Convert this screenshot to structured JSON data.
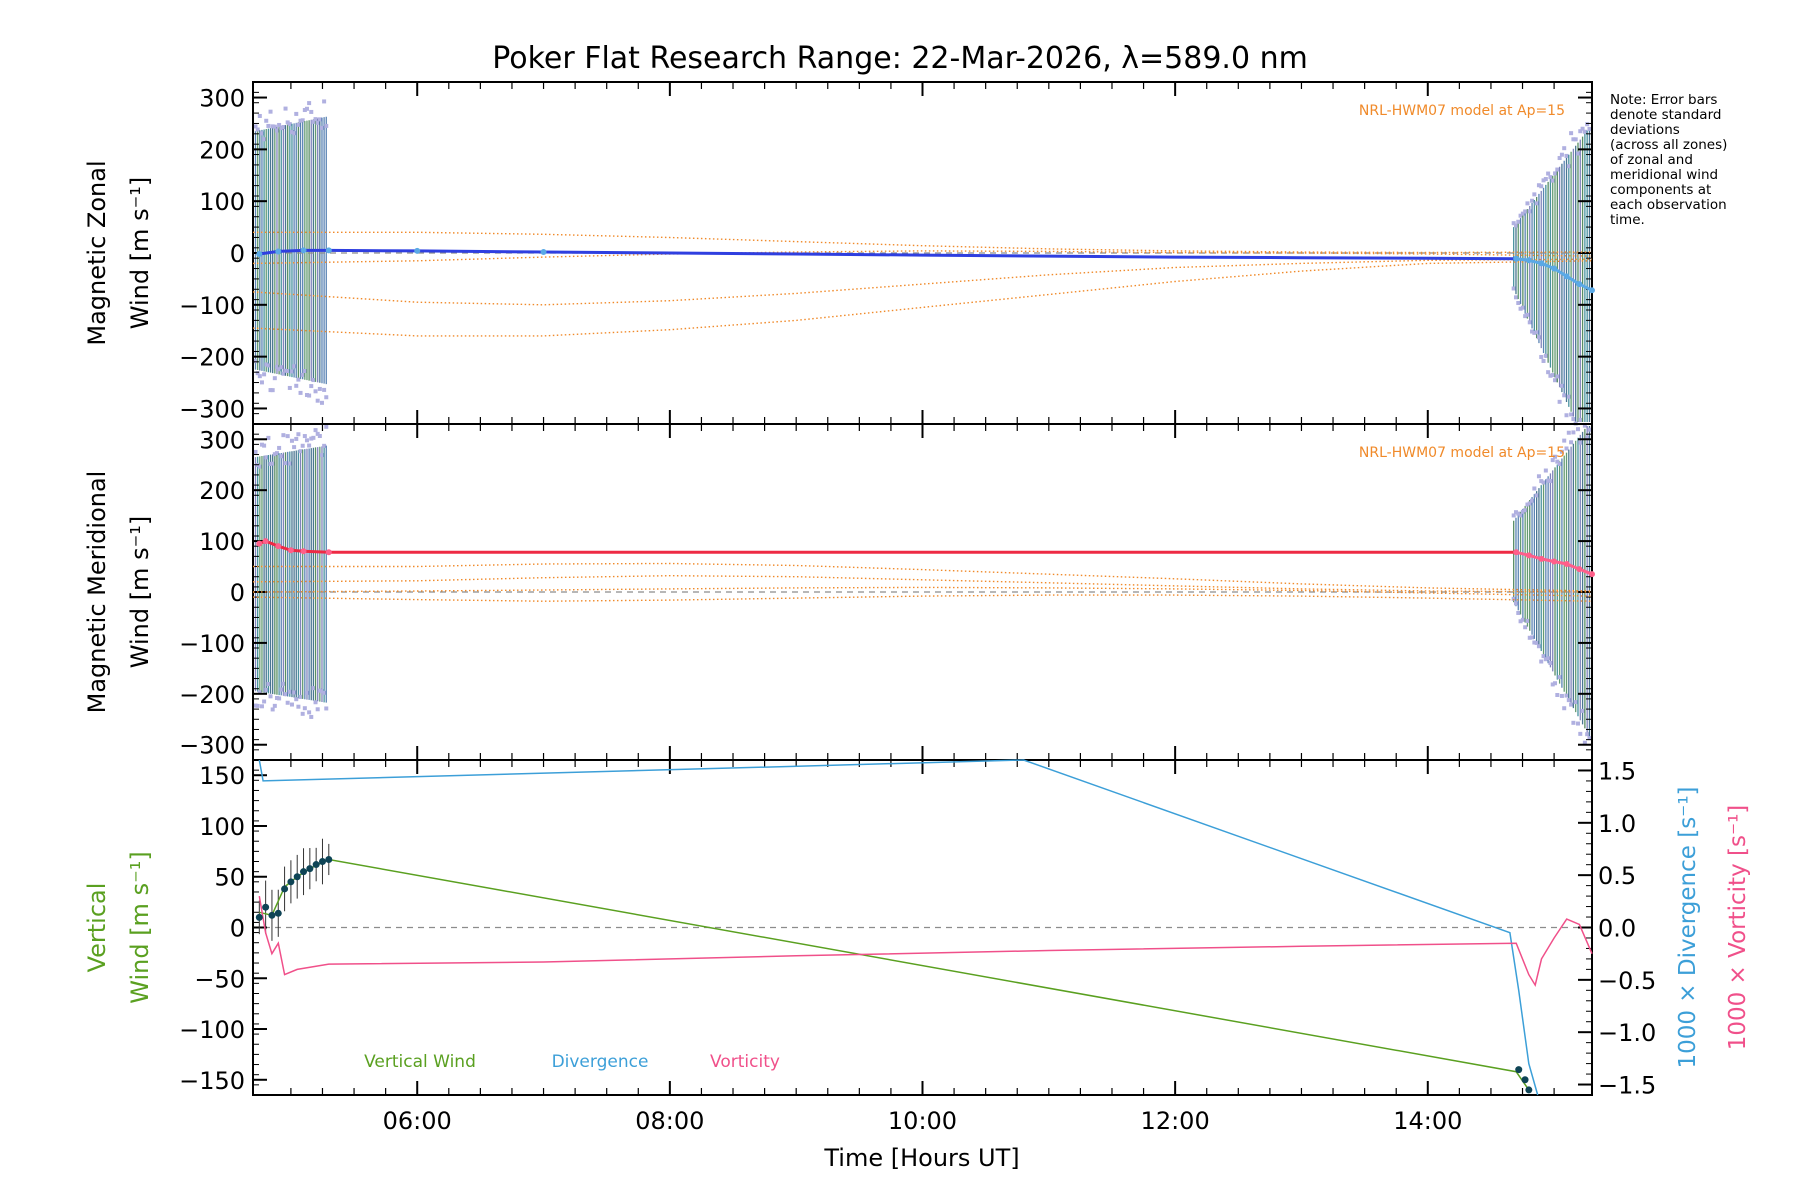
{
  "title": "Poker Flat Research Range: 22-Mar-2026, λ=589.0 nm",
  "note": [
    "Note: Error bars",
    "denote standard",
    "deviations",
    "(across all zones)",
    "of zonal and",
    "meridional wind",
    "components at",
    "each observation",
    "time."
  ],
  "colors": {
    "zonal": "#2f3fe0",
    "zonal_light": "#5aa9e6",
    "meridional": "#ee2a44",
    "meridional_light": "#ff5f8a",
    "model": "#f08a2a",
    "vertical": "#5aa020",
    "divergence": "#3c9fd8",
    "vorticity": "#f0508a",
    "error_bars": "#2b5f7f",
    "scatter": "#b0b0e0",
    "vertical_points": "#0e4456",
    "baseline": "#8c8c8c"
  },
  "chart_data": [
    {
      "type": "line",
      "panel": "zonal",
      "title": "Poker Flat Research Range: 22-Mar-2026, λ=589.0 nm",
      "ylabel": [
        "Magnetic Zonal",
        "Wind [m s⁻¹]"
      ],
      "xlim": [
        4.7,
        15.3
      ],
      "ylim": [
        -330,
        330
      ],
      "yticks": [
        300,
        200,
        100,
        0,
        -100,
        -200,
        -300
      ],
      "ytick_labels": [
        "300",
        "200",
        "100",
        "0",
        "−100",
        "−200",
        "−300"
      ],
      "model_label": "NRL-HWM07 model at Ap=15",
      "series": [
        {
          "name": "Zonal Wind",
          "x": [
            4.75,
            4.9,
            5.1,
            5.3,
            6.0,
            7.0,
            8.0,
            9.0,
            10.0,
            11.0,
            12.0,
            13.0,
            14.0,
            14.7
          ],
          "y": [
            -2,
            3,
            5,
            5,
            4,
            2,
            0,
            -2,
            -4,
            -6,
            -8,
            -9,
            -10,
            -11
          ]
        },
        {
          "name": "Zonal Wind (late)",
          "x": [
            14.7,
            14.8,
            14.9,
            15.0,
            15.1,
            15.2,
            15.3
          ],
          "y": [
            -11,
            -14,
            -20,
            -30,
            -45,
            -60,
            -72
          ]
        },
        {
          "name": "Model 1",
          "x": [
            4.7,
            6,
            7,
            8,
            9,
            10,
            11,
            12,
            13,
            14,
            15.3
          ],
          "y": [
            40,
            40,
            36,
            30,
            22,
            14,
            8,
            4,
            2,
            1,
            2
          ]
        },
        {
          "name": "Model 2",
          "x": [
            4.7,
            6,
            7,
            8,
            9,
            10,
            11,
            12,
            13,
            14,
            15.3
          ],
          "y": [
            -20,
            -15,
            -8,
            -2,
            2,
            4,
            3,
            1,
            0,
            -2,
            -6
          ]
        },
        {
          "name": "Model 3",
          "x": [
            4.7,
            6,
            7,
            8,
            9,
            10,
            11,
            12,
            13,
            14,
            15.3
          ],
          "y": [
            -75,
            -95,
            -100,
            -92,
            -78,
            -60,
            -42,
            -28,
            -20,
            -14,
            -12
          ]
        },
        {
          "name": "Model 4",
          "x": [
            4.7,
            6,
            7,
            8,
            9,
            10,
            11,
            12,
            13,
            14,
            15.3
          ],
          "y": [
            -145,
            -160,
            -160,
            -148,
            -130,
            -105,
            -80,
            -55,
            -35,
            -20,
            -15
          ]
        }
      ]
    },
    {
      "type": "line",
      "panel": "meridional",
      "ylabel": [
        "Magnetic Meridional",
        "Wind [m s⁻¹]"
      ],
      "xlim": [
        4.7,
        15.3
      ],
      "ylim": [
        -330,
        330
      ],
      "yticks": [
        300,
        200,
        100,
        0,
        -100,
        -200,
        -300
      ],
      "ytick_labels": [
        "300",
        "200",
        "100",
        "0",
        "−100",
        "−200",
        "−300"
      ],
      "model_label": "NRL-HWM07 model at Ap=15",
      "series": [
        {
          "name": "Meridional Wind",
          "x": [
            4.75,
            4.8,
            4.9,
            5.0,
            5.1,
            5.3,
            6,
            8,
            10,
            12,
            14,
            14.7
          ],
          "y": [
            95,
            100,
            90,
            82,
            80,
            78,
            78,
            78,
            78,
            78,
            78,
            78
          ]
        },
        {
          "name": "Meridional Wind (late)",
          "x": [
            14.7,
            14.8,
            14.9,
            15.0,
            15.1,
            15.2,
            15.3
          ],
          "y": [
            78,
            72,
            65,
            60,
            55,
            45,
            35
          ]
        },
        {
          "name": "Model 1",
          "x": [
            4.7,
            6,
            7,
            8,
            9,
            10,
            11,
            12,
            13,
            14,
            15.3
          ],
          "y": [
            50,
            50,
            55,
            56,
            52,
            44,
            35,
            26,
            16,
            8,
            2
          ]
        },
        {
          "name": "Model 2",
          "x": [
            4.7,
            6,
            7,
            8,
            9,
            10,
            11,
            12,
            13,
            14,
            15.3
          ],
          "y": [
            20,
            22,
            28,
            32,
            30,
            24,
            18,
            12,
            6,
            2,
            0
          ]
        },
        {
          "name": "Model 3",
          "x": [
            4.7,
            6,
            7,
            8,
            9,
            10,
            11,
            12,
            13,
            14,
            15.3
          ],
          "y": [
            0,
            2,
            4,
            6,
            8,
            9,
            8,
            6,
            3,
            -2,
            -8
          ]
        },
        {
          "name": "Model 4",
          "x": [
            4.7,
            6,
            7,
            8,
            9,
            10,
            11,
            12,
            13,
            14,
            15.3
          ],
          "y": [
            -10,
            -15,
            -18,
            -16,
            -12,
            -8,
            -6,
            -6,
            -8,
            -12,
            -18
          ]
        }
      ]
    },
    {
      "type": "line",
      "panel": "vertical",
      "xlabel": "Time [Hours UT]",
      "xlim": [
        4.7,
        15.3
      ],
      "xticks": [
        6,
        8,
        10,
        12,
        14
      ],
      "xtick_labels": [
        "06:00",
        "08:00",
        "10:00",
        "12:00",
        "14:00"
      ],
      "ylabel_left": [
        "Vertical",
        "Wind [m s⁻¹]"
      ],
      "ylim_left": [
        -165,
        165
      ],
      "yticks_left": [
        150,
        100,
        50,
        0,
        -50,
        -100,
        -150
      ],
      "ytick_labels_left": [
        "150",
        "100",
        "50",
        "0",
        "−50",
        "−100",
        "−150"
      ],
      "ylabel_right_1": "1000 × Divergence [s⁻¹]",
      "ylabel_right_2": "1000 × Vorticity [s⁻¹]",
      "ylim_right": [
        -1.6,
        1.6
      ],
      "yticks_right": [
        1.5,
        1.0,
        0.5,
        0.0,
        -0.5,
        -1.0,
        -1.5
      ],
      "ytick_labels_right": [
        "1.5",
        "1.0",
        "0.5",
        "0.0",
        "−0.5",
        "−1.0",
        "−1.5"
      ],
      "legend": [
        "Vertical Wind",
        "Divergence",
        "Vorticity"
      ],
      "series": [
        {
          "name": "Vertical Wind",
          "axis": "left",
          "x": [
            4.75,
            4.85,
            4.95,
            5.05,
            5.15,
            5.3,
            14.7,
            14.8
          ],
          "y": [
            15,
            12,
            40,
            50,
            58,
            67,
            -142,
            -160
          ]
        },
        {
          "name": "Divergence",
          "axis": "right",
          "x": [
            4.75,
            4.78,
            10.8,
            14.65,
            14.72,
            14.8,
            14.87
          ],
          "y": [
            1.6,
            1.4,
            1.6,
            -0.05,
            -0.6,
            -1.3,
            -1.6
          ]
        },
        {
          "name": "Vorticity",
          "axis": "right",
          "x": [
            4.75,
            4.8,
            4.85,
            4.9,
            4.95,
            5.05,
            5.3,
            7,
            9,
            11,
            13,
            14.7,
            14.8,
            14.85,
            14.9,
            15.0,
            15.1,
            15.2,
            15.3
          ],
          "y": [
            0.3,
            -0.05,
            -0.25,
            -0.15,
            -0.45,
            -0.4,
            -0.35,
            -0.33,
            -0.27,
            -0.22,
            -0.18,
            -0.15,
            -0.45,
            -0.55,
            -0.3,
            -0.1,
            0.08,
            0.03,
            -0.25
          ]
        }
      ],
      "vertical_points": {
        "x": [
          4.75,
          4.8,
          4.85,
          4.9,
          4.95,
          5.0,
          5.05,
          5.1,
          5.15,
          5.2,
          5.25,
          5.3,
          14.72,
          14.77,
          14.8
        ],
        "y": [
          10,
          20,
          12,
          14,
          38,
          45,
          50,
          55,
          58,
          62,
          65,
          67,
          -140,
          -150,
          -160
        ]
      }
    }
  ]
}
